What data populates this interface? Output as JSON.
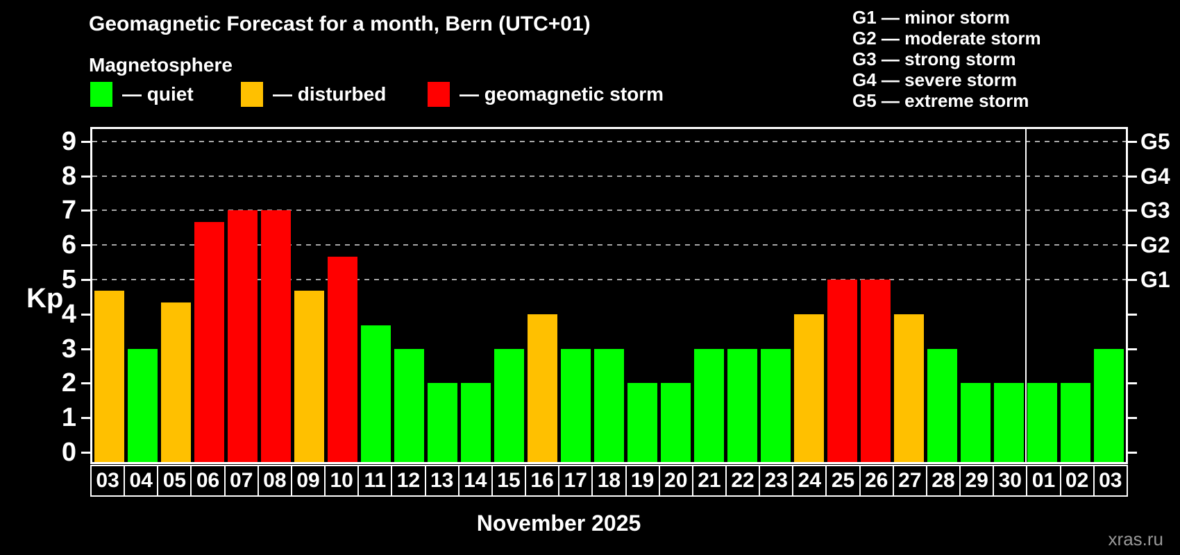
{
  "title": "Geomagnetic Forecast for a month, Bern (UTC+01)",
  "subtitle": "Magnetosphere",
  "legend": [
    {
      "name": "quiet",
      "label": "— quiet",
      "color": "#00ff00"
    },
    {
      "name": "disturbed",
      "label": "— disturbed",
      "color": "#ffc000"
    },
    {
      "name": "storm",
      "label": "— geomagnetic storm",
      "color": "#ff0000"
    }
  ],
  "storm_scale_legend": [
    "G1 — minor storm",
    "G2 — moderate storm",
    "G3 — strong storm",
    "G4 — severe storm",
    "G5 — extreme storm"
  ],
  "y_axis": {
    "label": "Kp",
    "ticks": [
      0,
      1,
      2,
      3,
      4,
      5,
      6,
      7,
      8,
      9
    ]
  },
  "right_axis": {
    "g_labels": [
      {
        "value": 5,
        "text": "G1"
      },
      {
        "value": 6,
        "text": "G2"
      },
      {
        "value": 7,
        "text": "G3"
      },
      {
        "value": 8,
        "text": "G4"
      },
      {
        "value": 9,
        "text": "G5"
      }
    ]
  },
  "x_axis_label": "November 2025",
  "watermark": "xras.ru",
  "chart_data": {
    "type": "bar",
    "title": "Geomagnetic Forecast for a month, Bern (UTC+01)",
    "xlabel": "November 2025",
    "ylabel": "Kp",
    "ylim": [
      0,
      9
    ],
    "grid": "dashed horizontal lines at Kp 5-9 (G1-G5 levels)",
    "grid_levels": [
      5,
      6,
      7,
      8,
      9
    ],
    "legend_position": "top-left",
    "categories": [
      "03",
      "04",
      "05",
      "06",
      "07",
      "08",
      "09",
      "10",
      "11",
      "12",
      "13",
      "14",
      "15",
      "16",
      "17",
      "18",
      "19",
      "20",
      "21",
      "22",
      "23",
      "24",
      "25",
      "26",
      "27",
      "28",
      "29",
      "30",
      "01",
      "02",
      "03"
    ],
    "values": [
      4.67,
      3,
      4.33,
      6.67,
      7,
      7,
      4.67,
      5.67,
      3.67,
      3,
      2,
      2,
      3,
      4,
      3,
      3,
      2,
      2,
      3,
      3,
      3,
      4,
      5,
      5,
      4,
      3,
      2,
      2,
      2,
      2,
      3
    ],
    "statuses": [
      "disturbed",
      "quiet",
      "disturbed",
      "storm",
      "storm",
      "storm",
      "disturbed",
      "storm",
      "quiet",
      "quiet",
      "quiet",
      "quiet",
      "quiet",
      "disturbed",
      "quiet",
      "quiet",
      "quiet",
      "quiet",
      "quiet",
      "quiet",
      "quiet",
      "disturbed",
      "storm",
      "storm",
      "disturbed",
      "quiet",
      "quiet",
      "quiet",
      "quiet",
      "quiet",
      "quiet"
    ],
    "colors": {
      "quiet": "#00ff00",
      "disturbed": "#ffc000",
      "storm": "#ff0000"
    },
    "month_separator_after_index": 27
  }
}
